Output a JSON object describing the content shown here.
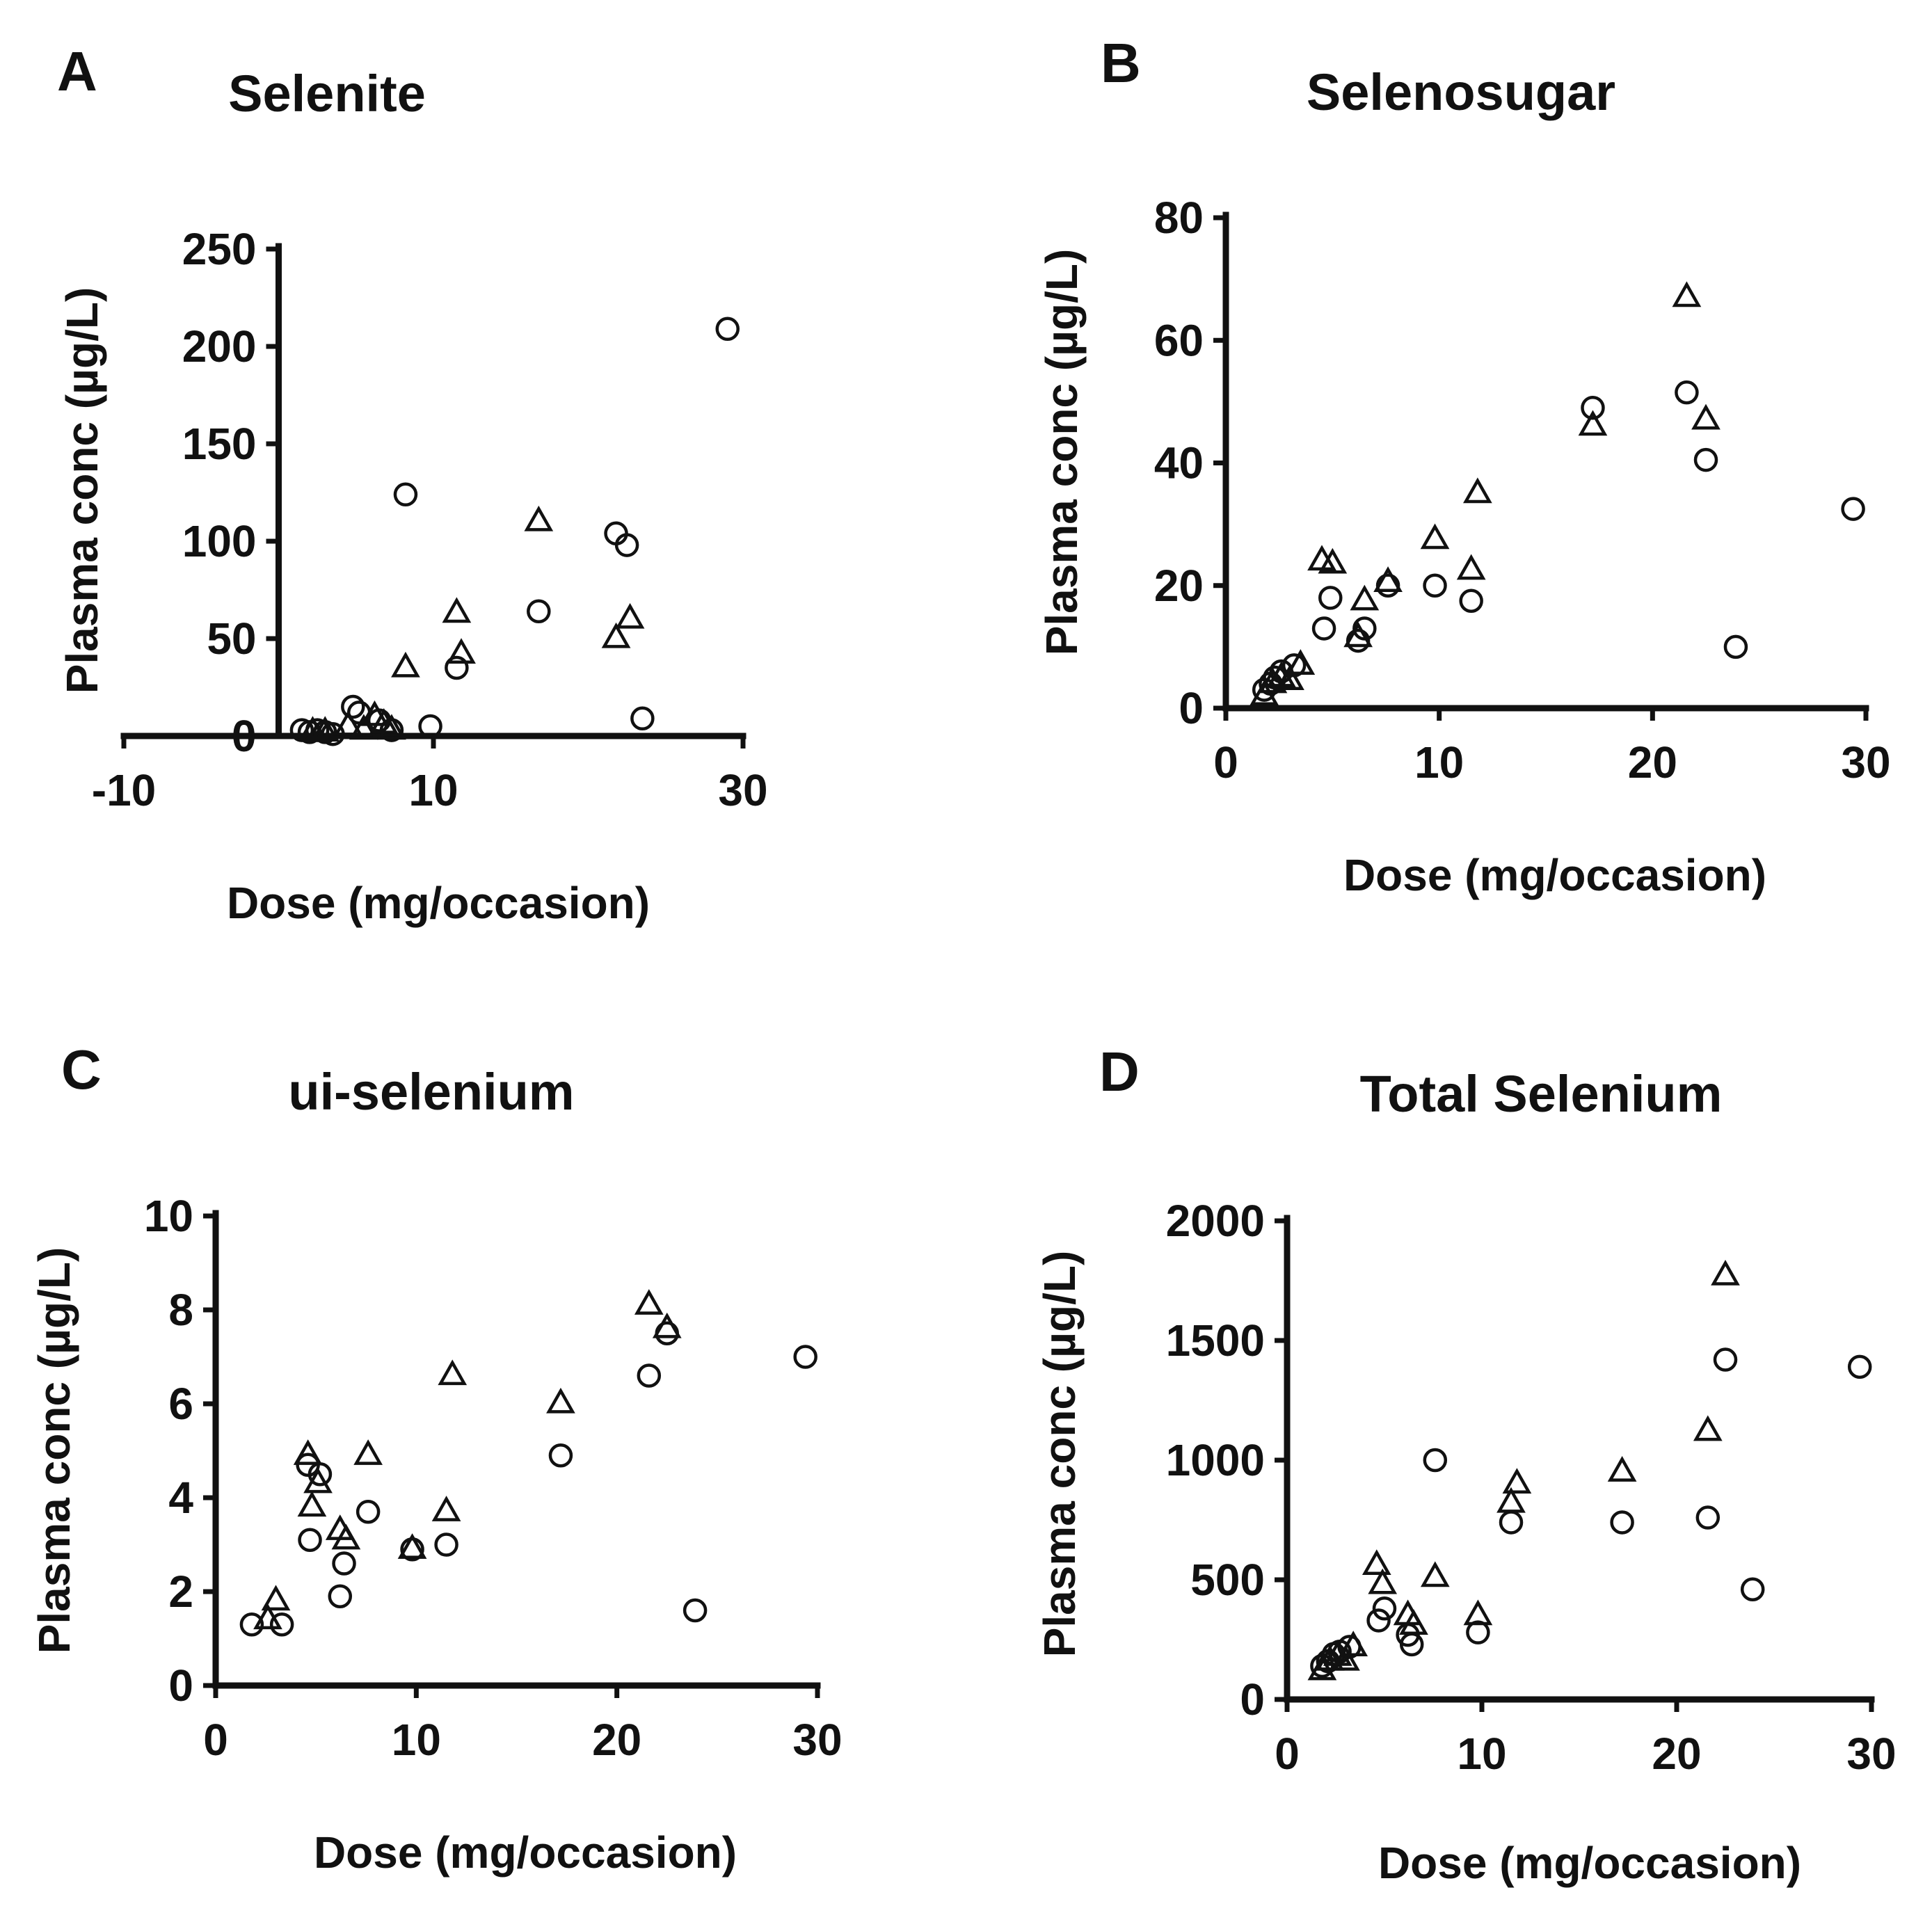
{
  "figure": {
    "colors": {
      "ink": "#111111",
      "background": "#ffffff"
    },
    "marker_legend": {
      "circle": "open circle",
      "triangle": "open triangle"
    }
  },
  "chart_data": [
    {
      "id": "A",
      "type": "scatter",
      "panel_label": "A",
      "title": "Selenite",
      "xlabel": "Dose (mg/occasion)",
      "ylabel": "Plasma conc (µg/L)",
      "xlim": [
        -10,
        30
      ],
      "ylim": [
        0,
        250
      ],
      "xticks": [
        -10,
        10,
        30
      ],
      "yticks": [
        0,
        50,
        100,
        150,
        200,
        250
      ],
      "yaxis_at_x": 0,
      "grid": false,
      "series": [
        {
          "marker": "circle",
          "points": [
            [
              1.5,
              3
            ],
            [
              2,
              2
            ],
            [
              2.5,
              3
            ],
            [
              3,
              2
            ],
            [
              3.5,
              1
            ],
            [
              4.8,
              15
            ],
            [
              5.2,
              12
            ],
            [
              6.5,
              8
            ],
            [
              7.3,
              3
            ],
            [
              8.2,
              124
            ],
            [
              9.8,
              5
            ],
            [
              11.5,
              35
            ],
            [
              16.8,
              64
            ],
            [
              21.8,
              104
            ],
            [
              22.5,
              98
            ],
            [
              23.5,
              9
            ],
            [
              29,
              209
            ]
          ]
        },
        {
          "marker": "triangle",
          "points": [
            [
              2.2,
              2
            ],
            [
              3,
              2
            ],
            [
              4.5,
              5
            ],
            [
              5.5,
              3
            ],
            [
              6.2,
              10
            ],
            [
              6.8,
              6
            ],
            [
              7.3,
              3
            ],
            [
              8.2,
              35
            ],
            [
              11.5,
              63
            ],
            [
              11.8,
              42
            ],
            [
              16.8,
              110
            ],
            [
              21.8,
              50
            ],
            [
              22.7,
              60
            ]
          ]
        }
      ]
    },
    {
      "id": "B",
      "type": "scatter",
      "panel_label": "B",
      "title": "Selenosugar",
      "xlabel": "Dose (mg/occasion)",
      "ylabel": "Plasma conc (µg/L)",
      "xlim": [
        0,
        30
      ],
      "ylim": [
        0,
        80
      ],
      "xticks": [
        0,
        10,
        20,
        30
      ],
      "yticks": [
        0,
        20,
        40,
        60,
        80
      ],
      "yaxis_at_x": 0,
      "grid": false,
      "series": [
        {
          "marker": "circle",
          "points": [
            [
              1.8,
              3
            ],
            [
              2.1,
              4
            ],
            [
              2.3,
              5
            ],
            [
              2.6,
              6
            ],
            [
              3.2,
              7
            ],
            [
              4.6,
              13
            ],
            [
              4.9,
              18
            ],
            [
              6.2,
              11
            ],
            [
              6.5,
              13
            ],
            [
              7.6,
              20
            ],
            [
              9.8,
              20
            ],
            [
              11.5,
              17.5
            ],
            [
              17.2,
              49
            ],
            [
              21.6,
              51.5
            ],
            [
              22.5,
              40.5
            ],
            [
              23.9,
              10
            ],
            [
              29.4,
              32.5
            ]
          ]
        },
        {
          "marker": "triangle",
          "points": [
            [
              1.8,
              2
            ],
            [
              2.2,
              4
            ],
            [
              2.6,
              5
            ],
            [
              3,
              4.5
            ],
            [
              3.5,
              7
            ],
            [
              4.5,
              24
            ],
            [
              5,
              23.5
            ],
            [
              6.2,
              11.5
            ],
            [
              6.5,
              17.5
            ],
            [
              7.6,
              20.5
            ],
            [
              9.8,
              27.5
            ],
            [
              11.5,
              22.5
            ],
            [
              11.8,
              35
            ],
            [
              17.2,
              46
            ],
            [
              21.6,
              67
            ],
            [
              22.5,
              47
            ]
          ]
        }
      ]
    },
    {
      "id": "C",
      "type": "scatter",
      "panel_label": "C",
      "title": "ui-selenium",
      "xlabel": "Dose (mg/occasion)",
      "ylabel": "Plasma conc (µg/L)",
      "xlim": [
        0,
        30
      ],
      "ylim": [
        0,
        10
      ],
      "xticks": [
        0,
        10,
        20,
        30
      ],
      "yticks": [
        0,
        2,
        4,
        6,
        8,
        10
      ],
      "yaxis_at_x": 0,
      "grid": false,
      "series": [
        {
          "marker": "circle",
          "points": [
            [
              1.8,
              1.3
            ],
            [
              3.3,
              1.3
            ],
            [
              4.6,
              4.7
            ],
            [
              4.7,
              3.1
            ],
            [
              5.2,
              4.5
            ],
            [
              6.2,
              1.9
            ],
            [
              6.4,
              2.6
            ],
            [
              7.6,
              3.7
            ],
            [
              9.8,
              2.9
            ],
            [
              11.5,
              3.0
            ],
            [
              17.2,
              4.9
            ],
            [
              21.6,
              6.6
            ],
            [
              22.5,
              7.5
            ],
            [
              23.9,
              1.6
            ],
            [
              29.4,
              7.0
            ]
          ]
        },
        {
          "marker": "triangle",
          "points": [
            [
              2.6,
              1.4
            ],
            [
              3,
              1.8
            ],
            [
              4.6,
              4.9
            ],
            [
              4.8,
              3.8
            ],
            [
              5.1,
              4.3
            ],
            [
              6.2,
              3.3
            ],
            [
              6.5,
              3.1
            ],
            [
              7.6,
              4.9
            ],
            [
              9.8,
              2.9
            ],
            [
              11.5,
              3.7
            ],
            [
              11.8,
              6.6
            ],
            [
              17.2,
              6.0
            ],
            [
              21.6,
              8.1
            ],
            [
              22.5,
              7.6
            ]
          ]
        }
      ]
    },
    {
      "id": "D",
      "type": "scatter",
      "panel_label": "D",
      "title": "Total Selenium",
      "xlabel": "Dose (mg/occasion)",
      "ylabel": "Plasma conc (µg/L)",
      "xlim": [
        0,
        30
      ],
      "ylim": [
        0,
        2000
      ],
      "xticks": [
        0,
        10,
        20,
        30
      ],
      "yticks": [
        0,
        500,
        1000,
        1500,
        2000
      ],
      "yaxis_at_x": 0,
      "grid": false,
      "series": [
        {
          "marker": "circle",
          "points": [
            [
              1.8,
              140
            ],
            [
              2.1,
              160
            ],
            [
              2.4,
              190
            ],
            [
              2.7,
              200
            ],
            [
              3.2,
              220
            ],
            [
              4.7,
              330
            ],
            [
              5.0,
              380
            ],
            [
              6.2,
              270
            ],
            [
              6.4,
              230
            ],
            [
              7.6,
              1000
            ],
            [
              9.8,
              280
            ],
            [
              11.5,
              740
            ],
            [
              17.2,
              740
            ],
            [
              21.6,
              760
            ],
            [
              22.5,
              1420
            ],
            [
              23.9,
              460
            ],
            [
              29.4,
              1390
            ]
          ]
        },
        {
          "marker": "triangle",
          "points": [
            [
              1.8,
              120
            ],
            [
              2.2,
              160
            ],
            [
              2.6,
              180
            ],
            [
              3.0,
              160
            ],
            [
              3.4,
              220
            ],
            [
              4.6,
              560
            ],
            [
              4.9,
              480
            ],
            [
              6.2,
              350
            ],
            [
              6.5,
              310
            ],
            [
              7.6,
              510
            ],
            [
              9.8,
              350
            ],
            [
              11.5,
              820
            ],
            [
              11.8,
              900
            ],
            [
              17.2,
              950
            ],
            [
              21.6,
              1120
            ],
            [
              22.5,
              1770
            ]
          ]
        }
      ]
    }
  ]
}
